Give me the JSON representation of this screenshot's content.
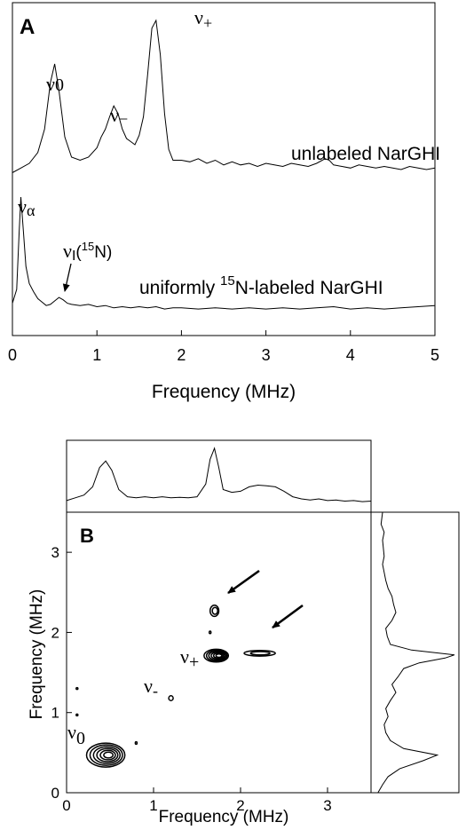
{
  "chart_data": [
    {
      "panel": "A",
      "type": "line",
      "xlabel": "Frequency (MHz)",
      "xlim": [
        0,
        5
      ],
      "xticks": [
        "0",
        "1",
        "2",
        "3",
        "4",
        "5"
      ],
      "series": [
        {
          "name": "unlabeled NarGHI",
          "x": [
            0,
            0.1,
            0.2,
            0.3,
            0.38,
            0.45,
            0.5,
            0.55,
            0.62,
            0.7,
            0.8,
            0.9,
            1.0,
            1.05,
            1.1,
            1.15,
            1.2,
            1.25,
            1.3,
            1.35,
            1.4,
            1.45,
            1.5,
            1.55,
            1.6,
            1.65,
            1.7,
            1.75,
            1.8,
            1.85,
            1.9,
            2.0,
            2.1,
            2.2,
            2.3,
            2.4,
            2.5,
            2.6,
            2.7,
            2.8,
            2.9,
            3.0,
            3.1,
            3.2,
            3.3,
            3.4,
            3.5,
            3.6,
            3.7,
            3.75,
            3.8,
            3.9,
            4.0,
            4.1,
            4.2,
            4.3,
            4.4,
            4.5,
            4.6,
            4.7,
            4.8,
            4.9,
            5.0
          ],
          "y": [
            0.02,
            0.05,
            0.08,
            0.15,
            0.3,
            0.6,
            0.72,
            0.55,
            0.25,
            0.12,
            0.1,
            0.12,
            0.18,
            0.25,
            0.3,
            0.38,
            0.45,
            0.4,
            0.3,
            0.24,
            0.22,
            0.2,
            0.26,
            0.38,
            0.65,
            0.95,
            1.0,
            0.78,
            0.4,
            0.17,
            0.1,
            0.1,
            0.09,
            0.11,
            0.08,
            0.1,
            0.07,
            0.09,
            0.07,
            0.08,
            0.06,
            0.08,
            0.07,
            0.06,
            0.08,
            0.07,
            0.06,
            0.08,
            0.11,
            0.1,
            0.07,
            0.06,
            0.05,
            0.07,
            0.06,
            0.05,
            0.06,
            0.05,
            0.04,
            0.06,
            0.05,
            0.04,
            0.05
          ]
        },
        {
          "name": "uniformly 15N-labeled NarGHI",
          "x": [
            0,
            0.05,
            0.08,
            0.1,
            0.13,
            0.16,
            0.2,
            0.25,
            0.3,
            0.35,
            0.4,
            0.45,
            0.5,
            0.55,
            0.6,
            0.65,
            0.7,
            0.8,
            0.9,
            1.0,
            1.1,
            1.2,
            1.3,
            1.4,
            1.5,
            1.6,
            1.7,
            1.8,
            1.9,
            2.0,
            2.2,
            2.4,
            2.6,
            2.8,
            3.0,
            3.2,
            3.4,
            3.6,
            3.8,
            4.0,
            4.2,
            4.4,
            4.6,
            4.8,
            5.0
          ],
          "y": [
            0.08,
            0.2,
            0.7,
            1.0,
            0.7,
            0.4,
            0.25,
            0.18,
            0.12,
            0.09,
            0.06,
            0.07,
            0.1,
            0.13,
            0.11,
            0.08,
            0.07,
            0.06,
            0.07,
            0.05,
            0.06,
            0.04,
            0.05,
            0.04,
            0.05,
            0.04,
            0.05,
            0.03,
            0.04,
            0.04,
            0.03,
            0.04,
            0.03,
            0.04,
            0.03,
            0.04,
            0.03,
            0.04,
            0.05,
            0.03,
            0.04,
            0.03,
            0.04,
            0.05,
            0.06
          ]
        }
      ]
    },
    {
      "panel": "B",
      "type": "heatmap",
      "xlabel": "Frequency (MHz)",
      "ylabel": "Frequency (MHz)",
      "xlim": [
        0,
        3.5
      ],
      "ylim": [
        0,
        3.5
      ],
      "xticks": [
        "0",
        "1",
        "2",
        "3"
      ],
      "yticks": [
        "0",
        "1",
        "2",
        "3"
      ],
      "contour_peaks": [
        {
          "x": 0.45,
          "y": 0.47,
          "rx": 0.22,
          "ry": 0.15,
          "levels": 6
        },
        {
          "x": 1.72,
          "y": 1.71,
          "rx": 0.14,
          "ry": 0.08,
          "levels": 6
        },
        {
          "x": 1.7,
          "y": 2.27,
          "rx": 0.05,
          "ry": 0.07,
          "levels": 2
        },
        {
          "x": 2.22,
          "y": 1.74,
          "rx": 0.18,
          "ry": 0.035,
          "levels": 2
        },
        {
          "x": 1.2,
          "y": 1.18,
          "rx": 0.025,
          "ry": 0.03,
          "levels": 1
        },
        {
          "x": 0.8,
          "y": 0.62,
          "rx": 0.01,
          "ry": 0.015,
          "levels": 1
        },
        {
          "x": 1.65,
          "y": 2.0,
          "rx": 0.01,
          "ry": 0.015,
          "levels": 1
        },
        {
          "x": 0.12,
          "y": 1.3,
          "rx": 0.008,
          "ry": 0.01,
          "levels": 1
        },
        {
          "x": 0.12,
          "y": 0.97,
          "rx": 0.008,
          "ry": 0.01,
          "levels": 1
        }
      ],
      "top_projection": {
        "x": [
          0,
          0.1,
          0.2,
          0.3,
          0.38,
          0.45,
          0.52,
          0.6,
          0.7,
          0.8,
          0.9,
          1.0,
          1.1,
          1.2,
          1.3,
          1.4,
          1.5,
          1.6,
          1.65,
          1.7,
          1.75,
          1.8,
          1.9,
          2.0,
          2.1,
          2.2,
          2.3,
          2.4,
          2.5,
          2.6,
          2.7,
          2.8,
          2.9,
          3.0,
          3.1,
          3.2,
          3.3,
          3.4,
          3.5
        ],
        "y": [
          0.05,
          0.1,
          0.15,
          0.3,
          0.65,
          0.77,
          0.6,
          0.25,
          0.12,
          0.1,
          0.12,
          0.1,
          0.12,
          0.1,
          0.11,
          0.1,
          0.12,
          0.35,
          0.8,
          1.0,
          0.65,
          0.25,
          0.2,
          0.22,
          0.3,
          0.33,
          0.32,
          0.3,
          0.22,
          0.12,
          0.08,
          0.06,
          0.08,
          0.05,
          0.06,
          0.04,
          0.05,
          0.03,
          0.04
        ]
      },
      "right_projection": {
        "y": [
          0,
          0.1,
          0.2,
          0.3,
          0.4,
          0.47,
          0.55,
          0.65,
          0.75,
          0.85,
          0.95,
          1.05,
          1.15,
          1.25,
          1.35,
          1.45,
          1.55,
          1.62,
          1.68,
          1.72,
          1.78,
          1.85,
          1.95,
          2.05,
          2.15,
          2.25,
          2.35,
          2.45,
          2.55,
          2.65,
          2.75,
          2.85,
          2.95,
          3.05,
          3.15,
          3.25,
          3.35,
          3.5
        ],
        "x": [
          0.02,
          0.08,
          0.15,
          0.3,
          0.6,
          0.78,
          0.35,
          0.18,
          0.12,
          0.1,
          0.15,
          0.12,
          0.18,
          0.25,
          0.2,
          0.28,
          0.35,
          0.55,
          0.88,
          1.0,
          0.45,
          0.18,
          0.14,
          0.12,
          0.2,
          0.25,
          0.22,
          0.2,
          0.15,
          0.12,
          0.1,
          0.08,
          0.1,
          0.09,
          0.08,
          0.1,
          0.06,
          0.08
        ]
      }
    }
  ],
  "panelA": {
    "letter": "A",
    "peak_labels": {
      "nu0": {
        "symbol": "ν",
        "sub": "0"
      },
      "numinus": {
        "symbol": "ν",
        "sub": "−"
      },
      "nuplus": {
        "symbol": "ν",
        "sub": "+"
      },
      "nualpha": {
        "symbol": "ν",
        "sub": "α"
      },
      "nuI": {
        "symbol": "ν",
        "sub": "I",
        "paren_open": "(",
        "sup": "15",
        "element": "N",
        "paren_close": ")"
      }
    },
    "trace_label_top": "unlabeled NarGHI",
    "trace_label_bottom": {
      "pre": "uniformly ",
      "sup": "15",
      "post": "N-labeled NarGHI"
    }
  },
  "panelB": {
    "letter": "B",
    "peak_labels": {
      "nuplus": {
        "symbol": "ν",
        "sub": "+"
      },
      "numinus": {
        "symbol": "ν",
        "sub": "-"
      },
      "nu0": {
        "symbol": "ν",
        "sub": "0"
      }
    }
  }
}
